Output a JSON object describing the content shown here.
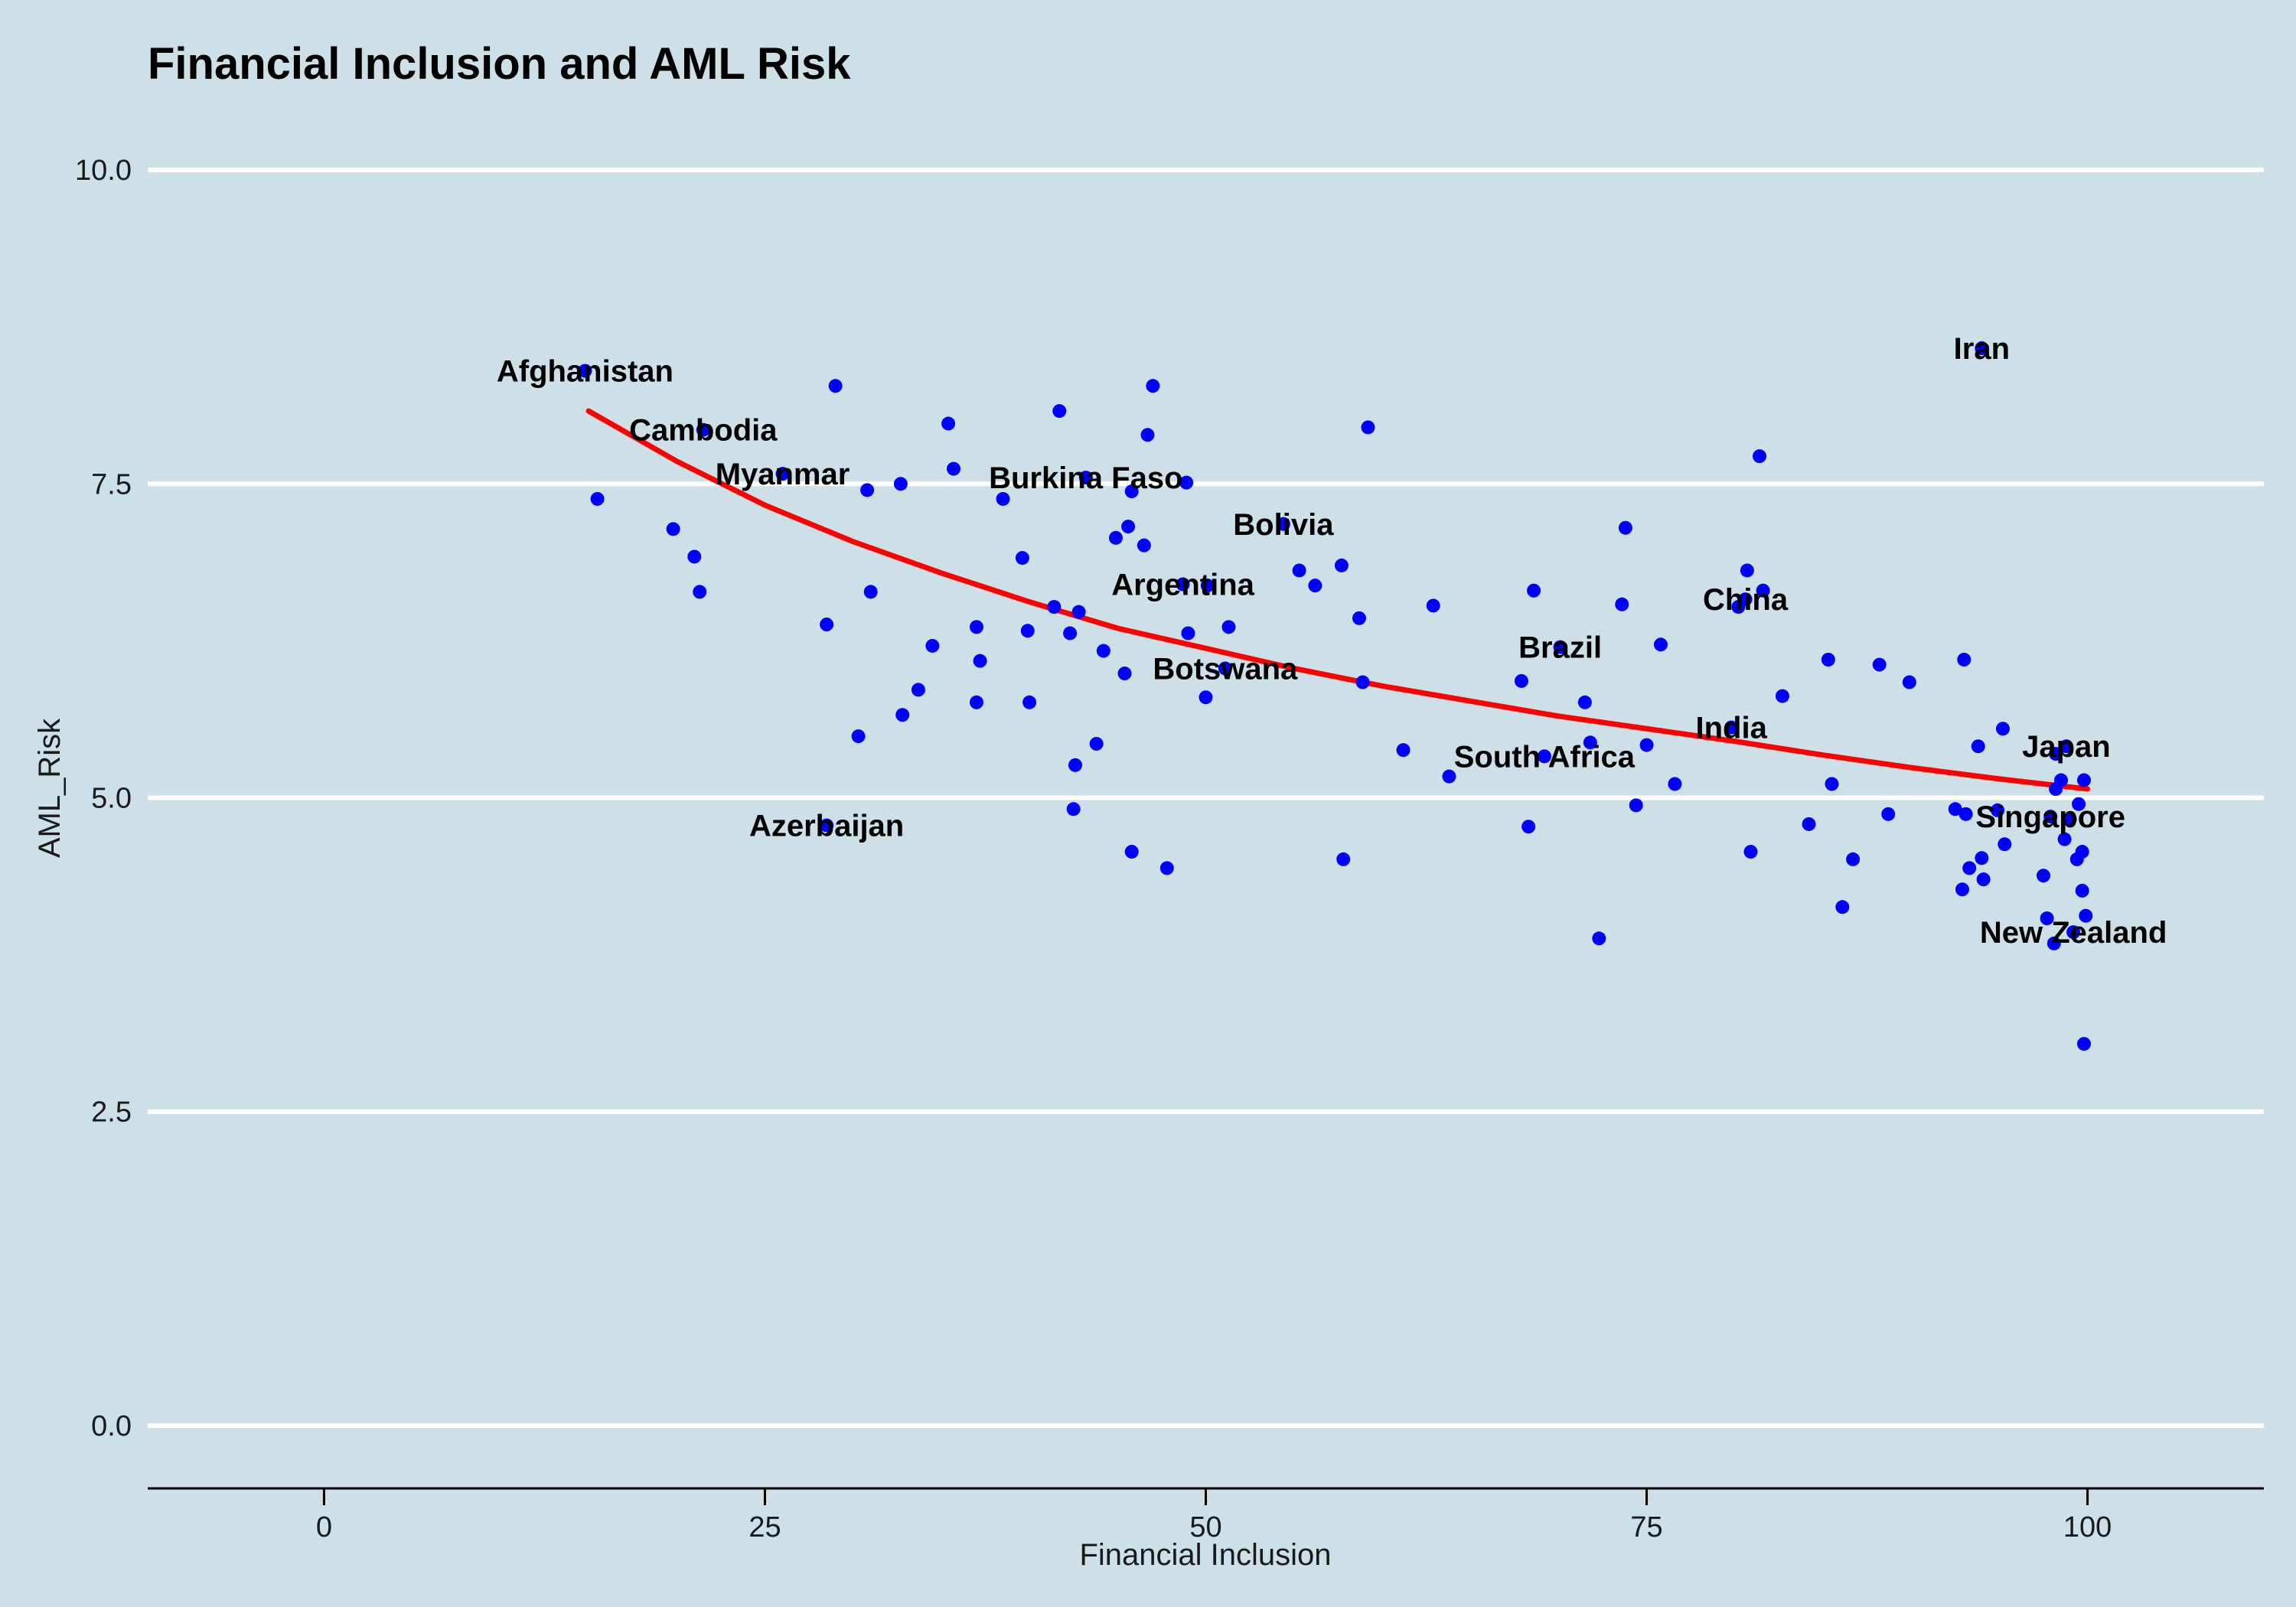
{
  "colors": {
    "background": "#cde0e7",
    "point": "#0000ff",
    "trend": "#ff0000",
    "grid": "#ffffff"
  },
  "chart_data": {
    "type": "scatter",
    "title": "Financial Inclusion and AML Risk",
    "xlabel": "Financial Inclusion",
    "ylabel": "AML_Risk",
    "xlim": [
      -10,
      110
    ],
    "ylim": [
      -0.5,
      10.5
    ],
    "x_ticks": [
      "0",
      "25",
      "50",
      "75",
      "100"
    ],
    "x_tick_values": [
      0,
      25,
      50,
      75,
      100
    ],
    "y_ticks": [
      "0.0",
      "2.5",
      "5.0",
      "7.5",
      "10.0"
    ],
    "y_tick_values": [
      0,
      2.5,
      5,
      7.5,
      10
    ],
    "grid": "horizontal",
    "points": [
      {
        "x": 14.8,
        "y": 8.4
      },
      {
        "x": 15.5,
        "y": 7.38
      },
      {
        "x": 19.8,
        "y": 7.14
      },
      {
        "x": 21.0,
        "y": 6.92
      },
      {
        "x": 21.3,
        "y": 6.64
      },
      {
        "x": 21.5,
        "y": 7.93
      },
      {
        "x": 26.0,
        "y": 7.58
      },
      {
        "x": 28.5,
        "y": 6.38
      },
      {
        "x": 28.5,
        "y": 4.78
      },
      {
        "x": 29.0,
        "y": 8.28
      },
      {
        "x": 30.3,
        "y": 5.49
      },
      {
        "x": 30.8,
        "y": 7.45
      },
      {
        "x": 31.0,
        "y": 6.64
      },
      {
        "x": 32.7,
        "y": 7.5
      },
      {
        "x": 32.8,
        "y": 5.66
      },
      {
        "x": 33.7,
        "y": 5.86
      },
      {
        "x": 34.5,
        "y": 6.21
      },
      {
        "x": 35.4,
        "y": 7.98
      },
      {
        "x": 35.7,
        "y": 7.62
      },
      {
        "x": 37.0,
        "y": 6.36
      },
      {
        "x": 37.0,
        "y": 5.76
      },
      {
        "x": 37.2,
        "y": 6.09
      },
      {
        "x": 38.5,
        "y": 7.38
      },
      {
        "x": 39.6,
        "y": 6.91
      },
      {
        "x": 39.9,
        "y": 6.33
      },
      {
        "x": 40.0,
        "y": 5.76
      },
      {
        "x": 41.4,
        "y": 6.52
      },
      {
        "x": 41.7,
        "y": 8.08
      },
      {
        "x": 42.3,
        "y": 6.31
      },
      {
        "x": 42.5,
        "y": 4.91
      },
      {
        "x": 42.6,
        "y": 5.26
      },
      {
        "x": 42.8,
        "y": 6.48
      },
      {
        "x": 43.2,
        "y": 7.55
      },
      {
        "x": 43.8,
        "y": 5.43
      },
      {
        "x": 44.2,
        "y": 6.17
      },
      {
        "x": 44.9,
        "y": 7.07
      },
      {
        "x": 45.4,
        "y": 5.99
      },
      {
        "x": 45.6,
        "y": 7.16
      },
      {
        "x": 45.8,
        "y": 7.44
      },
      {
        "x": 45.8,
        "y": 4.57
      },
      {
        "x": 46.5,
        "y": 7.01
      },
      {
        "x": 46.7,
        "y": 7.89
      },
      {
        "x": 47.0,
        "y": 8.28
      },
      {
        "x": 47.8,
        "y": 4.44
      },
      {
        "x": 48.7,
        "y": 6.7
      },
      {
        "x": 48.9,
        "y": 7.51
      },
      {
        "x": 49.0,
        "y": 6.31
      },
      {
        "x": 50.0,
        "y": 5.8
      },
      {
        "x": 50.1,
        "y": 6.69
      },
      {
        "x": 51.1,
        "y": 6.03
      },
      {
        "x": 51.3,
        "y": 6.36
      },
      {
        "x": 54.4,
        "y": 7.18
      },
      {
        "x": 55.3,
        "y": 6.81
      },
      {
        "x": 56.2,
        "y": 6.69
      },
      {
        "x": 57.7,
        "y": 6.85
      },
      {
        "x": 57.8,
        "y": 4.51
      },
      {
        "x": 58.7,
        "y": 6.43
      },
      {
        "x": 58.9,
        "y": 5.92
      },
      {
        "x": 59.2,
        "y": 7.95
      },
      {
        "x": 61.2,
        "y": 5.38
      },
      {
        "x": 62.9,
        "y": 6.53
      },
      {
        "x": 63.8,
        "y": 5.17
      },
      {
        "x": 67.9,
        "y": 5.93
      },
      {
        "x": 68.3,
        "y": 4.77
      },
      {
        "x": 68.6,
        "y": 6.65
      },
      {
        "x": 69.2,
        "y": 5.33
      },
      {
        "x": 70.1,
        "y": 6.2
      },
      {
        "x": 71.5,
        "y": 5.76
      },
      {
        "x": 71.8,
        "y": 5.44
      },
      {
        "x": 72.3,
        "y": 3.88
      },
      {
        "x": 73.6,
        "y": 6.54
      },
      {
        "x": 73.8,
        "y": 7.15
      },
      {
        "x": 74.4,
        "y": 4.94
      },
      {
        "x": 75.0,
        "y": 5.42
      },
      {
        "x": 75.8,
        "y": 6.22
      },
      {
        "x": 76.6,
        "y": 5.11
      },
      {
        "x": 79.8,
        "y": 5.56
      },
      {
        "x": 80.2,
        "y": 6.52
      },
      {
        "x": 80.6,
        "y": 6.58
      },
      {
        "x": 80.7,
        "y": 6.81
      },
      {
        "x": 80.9,
        "y": 4.57
      },
      {
        "x": 81.4,
        "y": 7.72
      },
      {
        "x": 81.6,
        "y": 6.65
      },
      {
        "x": 82.7,
        "y": 5.81
      },
      {
        "x": 84.2,
        "y": 4.79
      },
      {
        "x": 85.3,
        "y": 6.1
      },
      {
        "x": 85.5,
        "y": 5.11
      },
      {
        "x": 86.1,
        "y": 4.13
      },
      {
        "x": 86.7,
        "y": 4.51
      },
      {
        "x": 88.2,
        "y": 6.06
      },
      {
        "x": 88.7,
        "y": 4.87
      },
      {
        "x": 89.9,
        "y": 5.92
      },
      {
        "x": 92.5,
        "y": 4.91
      },
      {
        "x": 92.9,
        "y": 4.27
      },
      {
        "x": 93.0,
        "y": 6.1
      },
      {
        "x": 93.1,
        "y": 4.87
      },
      {
        "x": 93.3,
        "y": 4.44
      },
      {
        "x": 93.8,
        "y": 5.41
      },
      {
        "x": 94.0,
        "y": 8.58
      },
      {
        "x": 94.0,
        "y": 4.52
      },
      {
        "x": 94.1,
        "y": 4.35
      },
      {
        "x": 94.9,
        "y": 4.9
      },
      {
        "x": 95.2,
        "y": 5.55
      },
      {
        "x": 95.3,
        "y": 4.63
      },
      {
        "x": 97.5,
        "y": 4.38
      },
      {
        "x": 97.7,
        "y": 4.04
      },
      {
        "x": 97.9,
        "y": 4.85
      },
      {
        "x": 98.1,
        "y": 3.84
      },
      {
        "x": 98.2,
        "y": 5.07
      },
      {
        "x": 98.2,
        "y": 5.35
      },
      {
        "x": 98.5,
        "y": 5.14
      },
      {
        "x": 98.7,
        "y": 4.67
      },
      {
        "x": 98.8,
        "y": 5.41
      },
      {
        "x": 99.0,
        "y": 4.83
      },
      {
        "x": 99.2,
        "y": 3.93
      },
      {
        "x": 99.4,
        "y": 4.51
      },
      {
        "x": 99.5,
        "y": 4.95
      },
      {
        "x": 99.7,
        "y": 4.57
      },
      {
        "x": 99.7,
        "y": 4.26
      },
      {
        "x": 99.8,
        "y": 5.14
      },
      {
        "x": 99.9,
        "y": 4.06
      },
      {
        "x": 99.8,
        "y": 3.04
      }
    ],
    "labels": [
      {
        "text": "Afghanistan",
        "x": 14.8,
        "y": 8.4
      },
      {
        "text": "Cambodia",
        "x": 21.5,
        "y": 7.93
      },
      {
        "text": "Myanmar",
        "x": 26.0,
        "y": 7.58
      },
      {
        "text": "Burkina Faso",
        "x": 43.2,
        "y": 7.55
      },
      {
        "text": "Bolivia",
        "x": 54.4,
        "y": 7.18
      },
      {
        "text": "Argentina",
        "x": 48.7,
        "y": 6.7
      },
      {
        "text": "Botswana",
        "x": 51.1,
        "y": 6.03
      },
      {
        "text": "Azerbaijan",
        "x": 28.5,
        "y": 4.78
      },
      {
        "text": "Brazil",
        "x": 70.1,
        "y": 6.2
      },
      {
        "text": "South Africa",
        "x": 69.2,
        "y": 5.33
      },
      {
        "text": "China",
        "x": 80.6,
        "y": 6.58
      },
      {
        "text": "India",
        "x": 79.8,
        "y": 5.56
      },
      {
        "text": "Iran",
        "x": 94.0,
        "y": 8.58
      },
      {
        "text": "Japan",
        "x": 98.8,
        "y": 5.41
      },
      {
        "text": "Singapore",
        "x": 97.9,
        "y": 4.85
      },
      {
        "text": "New Zealand",
        "x": 99.2,
        "y": 3.93
      }
    ],
    "trend": {
      "x": [
        15,
        20,
        25,
        30,
        35,
        40,
        45,
        50,
        55,
        60,
        65,
        70,
        75,
        80,
        85,
        90,
        95,
        100
      ],
      "y": [
        8.08,
        7.68,
        7.33,
        7.04,
        6.79,
        6.56,
        6.35,
        6.19,
        6.03,
        5.89,
        5.77,
        5.65,
        5.55,
        5.45,
        5.34,
        5.24,
        5.15,
        5.07
      ]
    }
  }
}
